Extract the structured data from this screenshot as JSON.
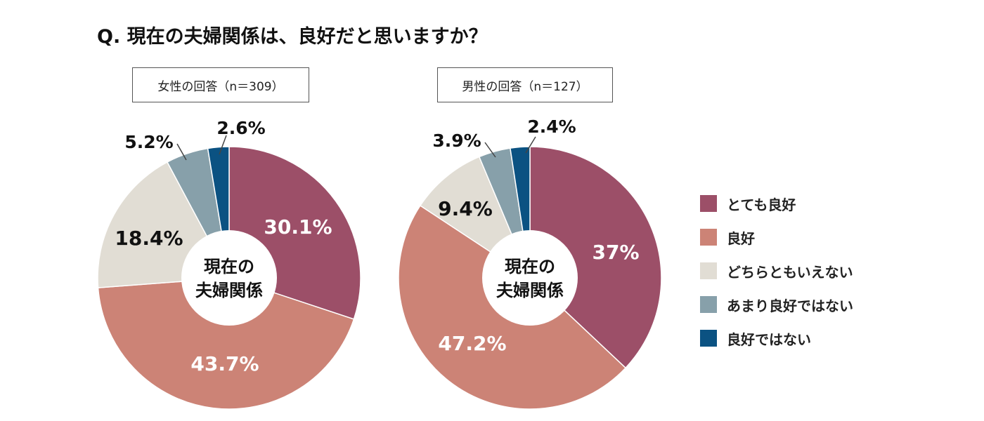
{
  "title": "Q. 現在の夫婦関係は、良好だと思いますか？",
  "colors": [
    "#9c4f68",
    "#cc8376",
    "#e1ddd4",
    "#87a0aa",
    "#0b5282"
  ],
  "chart_data": [
    {
      "type": "pie",
      "donut": true,
      "subtitle": "女性の回答（n＝309）",
      "center_label": [
        "現在の",
        "夫婦関係"
      ],
      "categories": [
        "とても良好",
        "良好",
        "どちらともいえない",
        "あまり良好ではない",
        "良好ではない"
      ],
      "values": [
        30.1,
        43.7,
        18.4,
        5.2,
        2.6
      ],
      "labels": [
        "30.1%",
        "43.7%",
        "18.4%",
        "5.2%",
        "2.6%"
      ]
    },
    {
      "type": "pie",
      "donut": true,
      "subtitle": "男性の回答（n＝127）",
      "center_label": [
        "現在の",
        "夫婦関係"
      ],
      "categories": [
        "とても良好",
        "良好",
        "どちらともいえない",
        "あまり良好ではない",
        "良好ではない"
      ],
      "values": [
        37,
        47.2,
        9.4,
        3.9,
        2.4
      ],
      "labels": [
        "37%",
        "47.2%",
        "9.4%",
        "3.9%",
        "2.4%"
      ]
    }
  ],
  "legend": {
    "placement": "right",
    "items": [
      "とても良好",
      "良好",
      "どちらともいえない",
      "あまり良好ではない",
      "良好ではない"
    ]
  }
}
